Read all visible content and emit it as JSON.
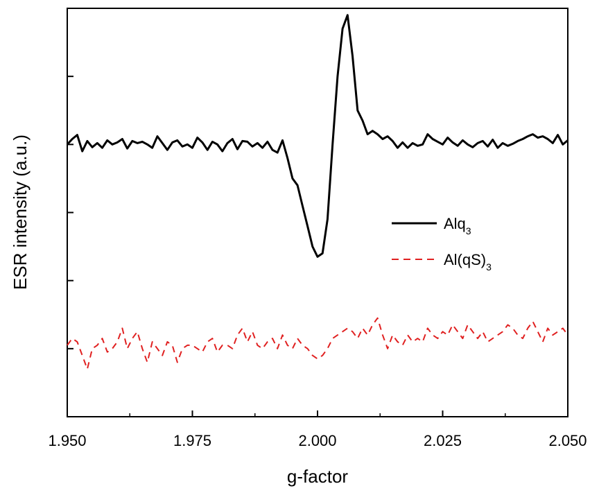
{
  "chart_data": {
    "type": "line",
    "xlabel": "g-factor",
    "ylabel": "ESR intensity (a.u.)",
    "xlim": [
      1.95,
      2.05
    ],
    "ylim": [
      -4,
      2
    ],
    "x_ticks": [
      "1.950",
      "1.975",
      "2.000",
      "2.025",
      "2.050"
    ],
    "y_ticks_labeled": false,
    "grid": false,
    "legend": {
      "placement": "center-right"
    },
    "series": [
      {
        "name": "Alq",
        "name_subscript": "3",
        "color": "#000000",
        "dash": "solid",
        "x": [
          1.95,
          1.951,
          1.952,
          1.953,
          1.954,
          1.955,
          1.956,
          1.957,
          1.958,
          1.959,
          1.96,
          1.961,
          1.962,
          1.963,
          1.964,
          1.965,
          1.966,
          1.967,
          1.968,
          1.969,
          1.97,
          1.971,
          1.972,
          1.973,
          1.974,
          1.975,
          1.976,
          1.977,
          1.978,
          1.979,
          1.98,
          1.981,
          1.982,
          1.983,
          1.984,
          1.985,
          1.986,
          1.987,
          1.988,
          1.989,
          1.99,
          1.991,
          1.992,
          1.993,
          1.994,
          1.995,
          1.996,
          1.997,
          1.998,
          1.999,
          2.0,
          2.001,
          2.002,
          2.003,
          2.004,
          2.005,
          2.006,
          2.007,
          2.008,
          2.009,
          2.01,
          2.011,
          2.012,
          2.013,
          2.014,
          2.015,
          2.016,
          2.017,
          2.018,
          2.019,
          2.02,
          2.021,
          2.022,
          2.023,
          2.024,
          2.025,
          2.026,
          2.027,
          2.028,
          2.029,
          2.03,
          2.031,
          2.032,
          2.033,
          2.034,
          2.035,
          2.036,
          2.037,
          2.038,
          2.039,
          2.04,
          2.041,
          2.042,
          2.043,
          2.044,
          2.045,
          2.046,
          2.047,
          2.048,
          2.049,
          2.05
        ],
        "y": [
          0.0,
          0.08,
          0.14,
          -0.1,
          0.05,
          -0.04,
          0.02,
          -0.05,
          0.06,
          0.0,
          0.03,
          0.08,
          -0.06,
          0.05,
          0.02,
          0.04,
          0.0,
          -0.05,
          0.12,
          0.02,
          -0.08,
          0.03,
          0.06,
          -0.03,
          0.0,
          -0.05,
          0.1,
          0.03,
          -0.08,
          0.04,
          0.0,
          -0.1,
          0.02,
          0.08,
          -0.07,
          0.05,
          0.04,
          -0.03,
          0.02,
          -0.05,
          0.04,
          -0.08,
          -0.12,
          0.06,
          -0.2,
          -0.5,
          -0.6,
          -0.9,
          -1.2,
          -1.5,
          -1.65,
          -1.6,
          -1.1,
          0.0,
          1.0,
          1.7,
          1.9,
          1.3,
          0.5,
          0.35,
          0.15,
          0.2,
          0.15,
          0.08,
          0.12,
          0.05,
          -0.05,
          0.03,
          -0.05,
          0.02,
          -0.02,
          0.0,
          0.15,
          0.08,
          0.04,
          0.0,
          0.1,
          0.03,
          -0.02,
          0.06,
          0.0,
          -0.04,
          0.02,
          0.05,
          -0.03,
          0.07,
          -0.05,
          0.02,
          -0.02,
          0.01,
          0.05,
          0.08,
          0.12,
          0.15,
          0.1,
          0.12,
          0.08,
          0.02,
          0.14,
          0.0,
          0.06
        ]
      },
      {
        "name": "Al(qS)",
        "name_subscript": "3",
        "color": "#e02020",
        "dash": "dashed",
        "x": [
          1.95,
          1.951,
          1.952,
          1.953,
          1.954,
          1.955,
          1.956,
          1.957,
          1.958,
          1.959,
          1.96,
          1.961,
          1.962,
          1.963,
          1.964,
          1.965,
          1.966,
          1.967,
          1.968,
          1.969,
          1.97,
          1.971,
          1.972,
          1.973,
          1.974,
          1.975,
          1.976,
          1.977,
          1.978,
          1.979,
          1.98,
          1.981,
          1.982,
          1.983,
          1.984,
          1.985,
          1.986,
          1.987,
          1.988,
          1.989,
          1.99,
          1.991,
          1.992,
          1.993,
          1.994,
          1.995,
          1.996,
          1.997,
          1.998,
          1.999,
          2.0,
          2.001,
          2.002,
          2.003,
          2.004,
          2.005,
          2.006,
          2.007,
          2.008,
          2.009,
          2.01,
          2.011,
          2.012,
          2.013,
          2.014,
          2.015,
          2.016,
          2.017,
          2.018,
          2.019,
          2.02,
          2.021,
          2.022,
          2.023,
          2.024,
          2.025,
          2.026,
          2.027,
          2.028,
          2.029,
          2.03,
          2.031,
          2.032,
          2.033,
          2.034,
          2.035,
          2.036,
          2.037,
          2.038,
          2.039,
          2.04,
          2.041,
          2.042,
          2.043,
          2.044,
          2.045,
          2.046,
          2.047,
          2.048,
          2.049,
          2.05
        ],
        "y": [
          -2.95,
          -2.85,
          -2.9,
          -3.1,
          -3.3,
          -3.0,
          -2.95,
          -2.85,
          -3.05,
          -3.0,
          -2.9,
          -2.7,
          -3.0,
          -2.85,
          -2.75,
          -3.0,
          -3.2,
          -2.9,
          -3.0,
          -3.1,
          -2.9,
          -2.95,
          -3.2,
          -3.0,
          -2.95,
          -2.95,
          -3.0,
          -3.05,
          -2.9,
          -2.85,
          -3.05,
          -2.95,
          -2.95,
          -3.0,
          -2.8,
          -2.7,
          -2.9,
          -2.75,
          -2.95,
          -3.0,
          -2.9,
          -2.85,
          -3.0,
          -2.8,
          -2.95,
          -3.0,
          -2.85,
          -2.95,
          -3.0,
          -3.1,
          -3.15,
          -3.1,
          -3.0,
          -2.85,
          -2.8,
          -2.75,
          -2.7,
          -2.75,
          -2.85,
          -2.7,
          -2.8,
          -2.65,
          -2.55,
          -2.8,
          -3.0,
          -2.8,
          -2.9,
          -2.95,
          -2.8,
          -2.9,
          -2.85,
          -2.9,
          -2.7,
          -2.8,
          -2.85,
          -2.75,
          -2.8,
          -2.65,
          -2.75,
          -2.85,
          -2.65,
          -2.75,
          -2.85,
          -2.75,
          -2.9,
          -2.85,
          -2.8,
          -2.75,
          -2.65,
          -2.7,
          -2.8,
          -2.85,
          -2.7,
          -2.6,
          -2.75,
          -2.9,
          -2.7,
          -2.8,
          -2.75,
          -2.7,
          -2.8
        ]
      }
    ]
  }
}
